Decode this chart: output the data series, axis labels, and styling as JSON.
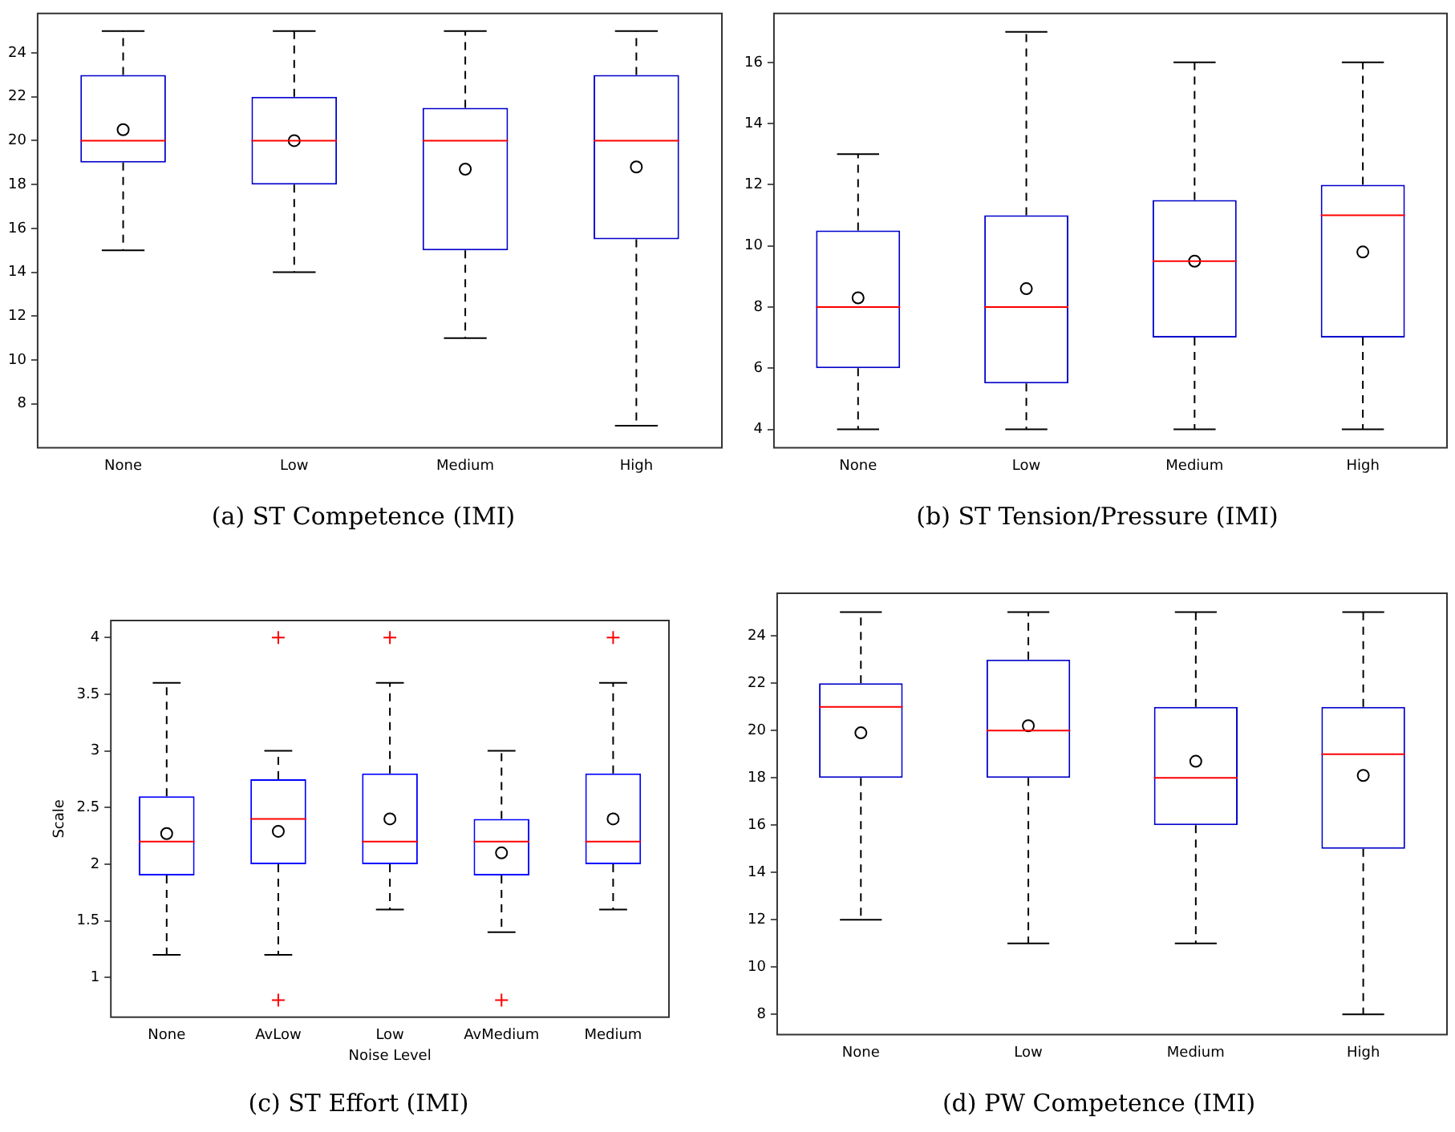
{
  "chart_data": [
    {
      "type": "box",
      "title": "(a) ST Competence (IMI)",
      "categories": [
        "None",
        "Low",
        "Medium",
        "High"
      ],
      "ylim": [
        6,
        25.8
      ],
      "yticks": [
        8,
        10,
        12,
        14,
        16,
        18,
        20,
        22,
        24
      ],
      "marker": "circle",
      "series": [
        {
          "color": "#0000cc",
          "boxes": [
            {
              "low": 15,
              "q1": 19,
              "median": 20,
              "q3": 23,
              "high": 25,
              "mean": 20.5
            },
            {
              "low": 14,
              "q1": 18,
              "median": 20,
              "q3": 22,
              "high": 25,
              "mean": 20
            },
            {
              "low": 11,
              "q1": 15,
              "median": 20,
              "q3": 21.5,
              "high": 25,
              "mean": 18.7
            },
            {
              "low": 7,
              "q1": 15.5,
              "median": 20,
              "q3": 23,
              "high": 25,
              "mean": 18.8
            }
          ]
        }
      ]
    },
    {
      "type": "box",
      "title": "(b) ST Tension/Pressure (IMI)",
      "categories": [
        "None",
        "Low",
        "Medium",
        "High"
      ],
      "ylim": [
        3.4,
        17.6
      ],
      "yticks": [
        4,
        6,
        8,
        10,
        12,
        14,
        16
      ],
      "marker": "circle",
      "series": [
        {
          "color": "#0000cc",
          "boxes": [
            {
              "low": 4,
              "q1": 6,
              "median": 8,
              "q3": 10.5,
              "high": 13,
              "mean": 8.3
            },
            {
              "low": 4,
              "q1": 5.5,
              "median": 8,
              "q3": 11,
              "high": 17,
              "mean": 8.6
            },
            {
              "low": 4,
              "q1": 7,
              "median": 9.5,
              "q3": 11.5,
              "high": 16,
              "mean": 9.5
            },
            {
              "low": 4,
              "q1": 7,
              "median": 11,
              "q3": 12,
              "high": 16,
              "mean": 9.8
            }
          ]
        }
      ]
    },
    {
      "type": "box",
      "title": "(c) ST Effort (IMI)",
      "xlabel": "Noise Level",
      "ylabel": "Scale",
      "categories": [
        "None",
        "AvLow",
        "Low",
        "AvMedium",
        "Medium"
      ],
      "ylim": [
        0.65,
        4.15
      ],
      "yticks": [
        1,
        1.5,
        2,
        2.5,
        3,
        3.5,
        4
      ],
      "marker": "circle",
      "series": [
        {
          "color": "#0000ff",
          "boxes": [
            {
              "low": 1.2,
              "q1": 1.9,
              "median": 2.2,
              "q3": 2.6,
              "high": 3.6,
              "mean": 2.27
            },
            {
              "low": 1.2,
              "q1": 2,
              "median": 2.4,
              "q3": 2.75,
              "high": 3,
              "mean": 2.29,
              "outliers": [
                4,
                0.8
              ]
            },
            {
              "low": 1.6,
              "q1": 2,
              "median": 2.2,
              "q3": 2.8,
              "high": 3.6,
              "mean": 2.4,
              "outliers": [
                4
              ]
            },
            {
              "low": 1.4,
              "q1": 1.9,
              "median": 2.2,
              "q3": 2.4,
              "high": 3,
              "mean": 2.1,
              "outliers": [
                0.8
              ]
            },
            {
              "low": 1.6,
              "q1": 2,
              "median": 2.2,
              "q3": 2.8,
              "high": 3.6,
              "mean": 2.4,
              "outliers": [
                4
              ]
            }
          ]
        }
      ]
    },
    {
      "type": "box",
      "title": "(d) PW Competence (IMI)",
      "categories": [
        "None",
        "Low",
        "Medium",
        "High"
      ],
      "ylim": [
        7.15,
        25.8
      ],
      "yticks": [
        8,
        10,
        12,
        14,
        16,
        18,
        20,
        22,
        24
      ],
      "marker": "circle",
      "series": [
        {
          "color": "#0000cc",
          "boxes": [
            {
              "low": 12,
              "q1": 18,
              "median": 21,
              "q3": 22,
              "high": 25,
              "mean": 19.9
            },
            {
              "low": 11,
              "q1": 18,
              "median": 20,
              "q3": 23,
              "high": 25,
              "mean": 20.2
            },
            {
              "low": 11,
              "q1": 16,
              "median": 18,
              "q3": 21,
              "high": 25,
              "mean": 18.7
            },
            {
              "low": 8,
              "q1": 15,
              "median": 19,
              "q3": 21,
              "high": 25,
              "mean": 18.1
            }
          ]
        }
      ]
    }
  ]
}
